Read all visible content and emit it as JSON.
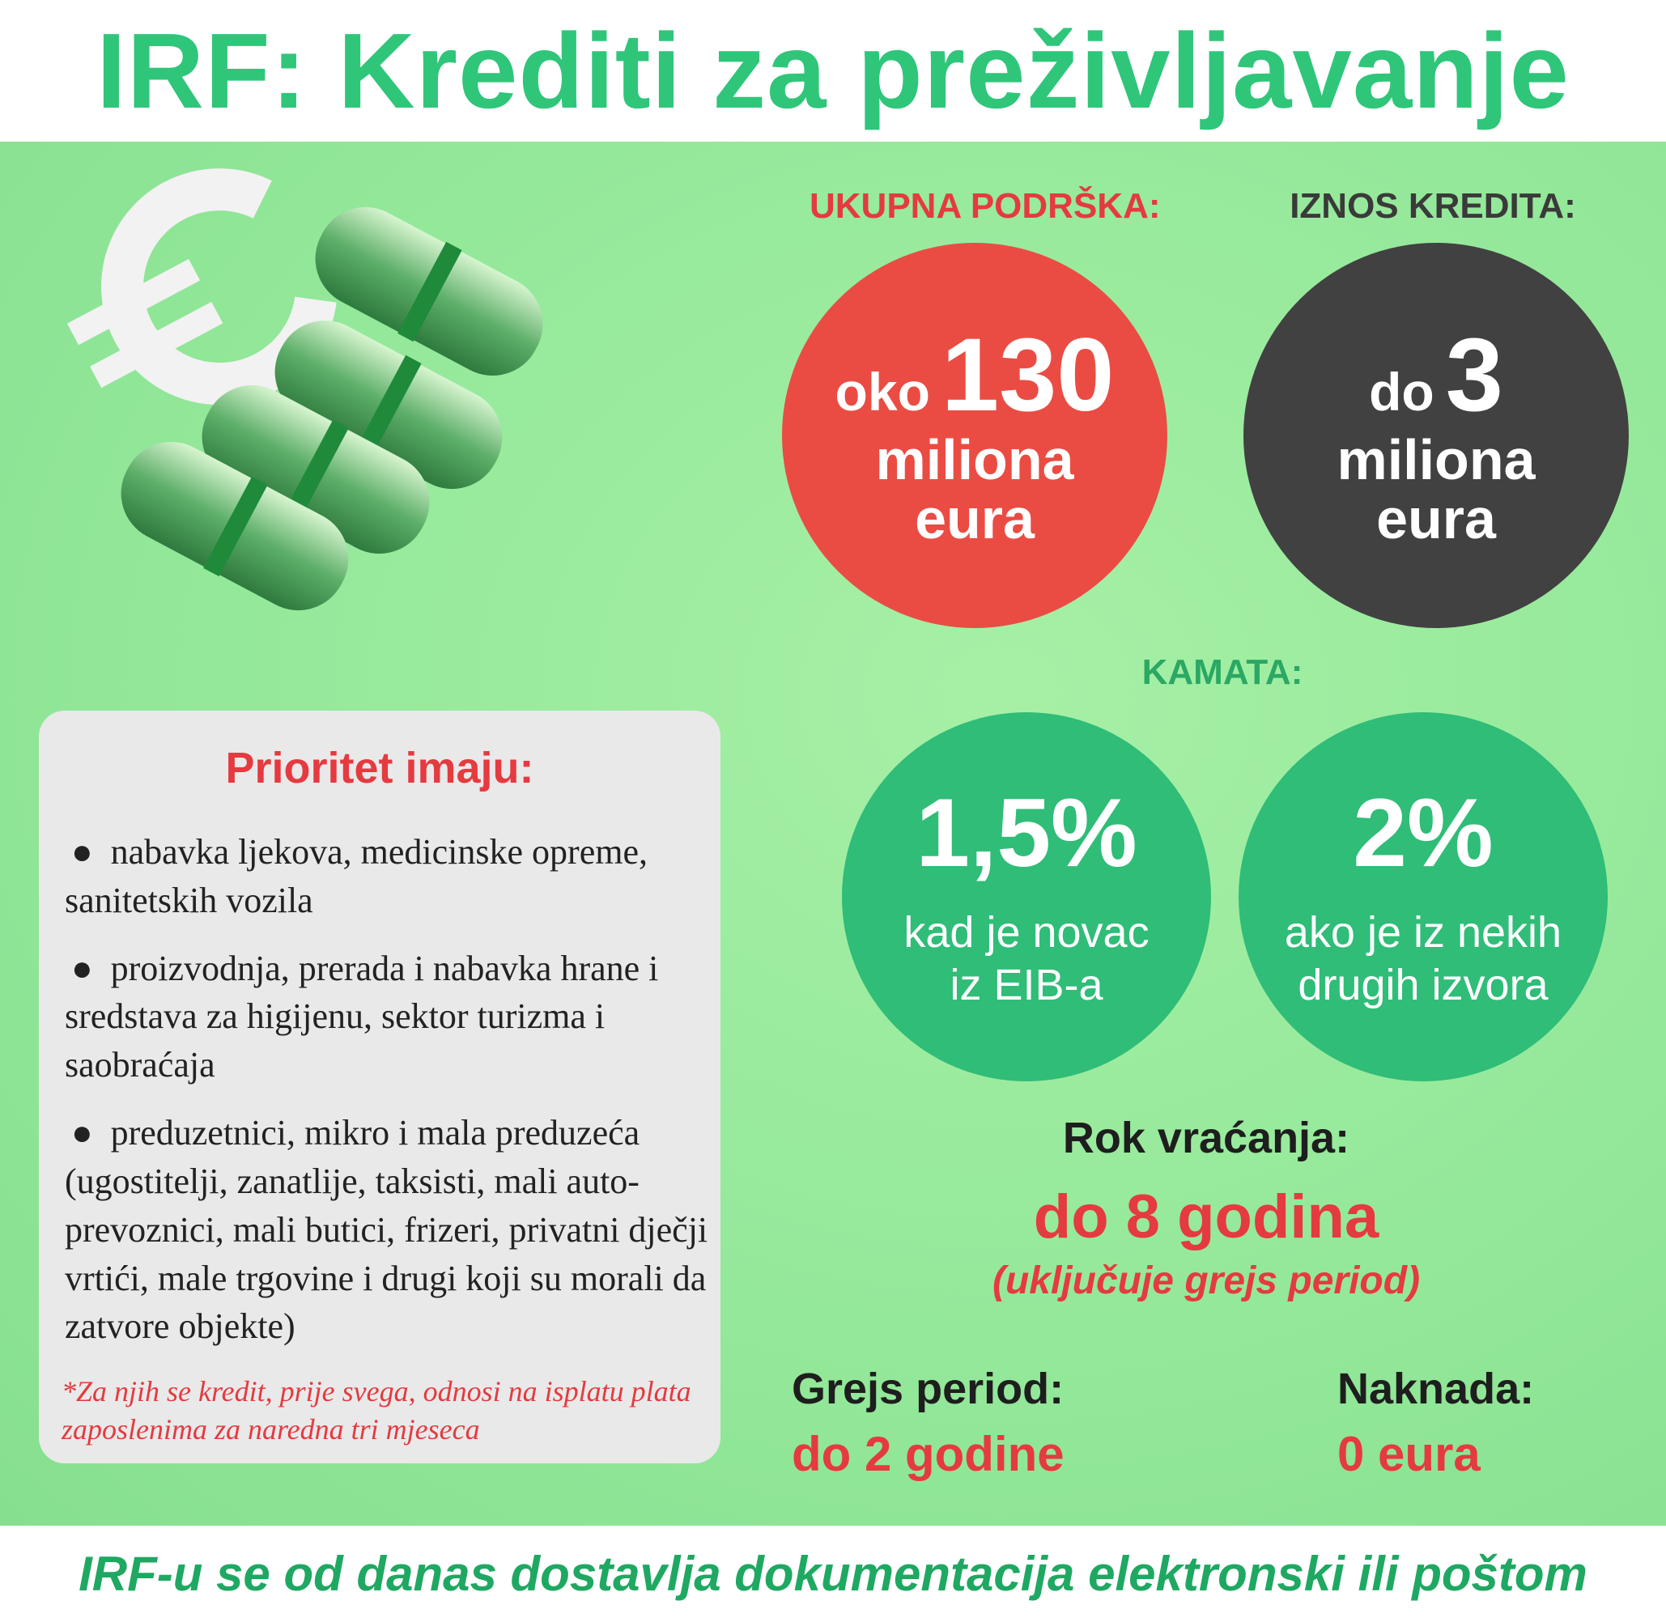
{
  "header": {
    "title": "IRF: Krediti za preživljavanje"
  },
  "colors": {
    "brand_green": "#2fc67a",
    "red": "#ea4c43",
    "dark": "#414141",
    "circle_green": "#2fbd78",
    "panel_green": "#94e89a"
  },
  "illustration": {
    "icon": "euro-banknote-rolls-icon"
  },
  "support": {
    "label": "UKUPNA PODRŠKA:",
    "prefix": "oko",
    "amount": "130",
    "unit_line1": "miliona",
    "unit_line2": "eura"
  },
  "loan": {
    "label": "IZNOS KREDITA:",
    "prefix": "do",
    "amount": "3",
    "unit_line1": "miliona",
    "unit_line2": "eura"
  },
  "interest": {
    "label": "KAMATA:",
    "rate1": {
      "value": "1,5%",
      "line1": "kad je novac",
      "line2": "iz EIB-a"
    },
    "rate2": {
      "value": "2%",
      "line1": "ako je iz nekih",
      "line2": "drugih izvora"
    }
  },
  "priority": {
    "title": "Prioritet imaju:",
    "items": [
      "nabavka ljekova, medicinske opreme, sanitetskih vozila",
      "proizvodnja, prerada i nabavka hrane i sredstava za higijenu, sektor turizma i saobraćaja",
      "preduzetnici, mikro i mala preduzeća (ugostitelji, zanatlije, taksisti, mali auto-prevoznici, mali butici, frizeri, privatni dječji vrtići, male trgovine i drugi  koji su morali da zatvore objekte)"
    ],
    "note": "*Za njih se kredit, prije svega, odnosi na isplatu plata zaposlenima za naredna tri mjeseca"
  },
  "repayment": {
    "label": "Rok vraćanja:",
    "value": "do 8 godina",
    "note": "(uključuje grejs period)"
  },
  "grace": {
    "label": "Grejs period:",
    "value": "do 2 godine"
  },
  "fee": {
    "label": "Naknada:",
    "value": "0 eura"
  },
  "footer": {
    "text": "IRF-u se od danas dostavlja dokumentacija elektronski ili poštom"
  }
}
